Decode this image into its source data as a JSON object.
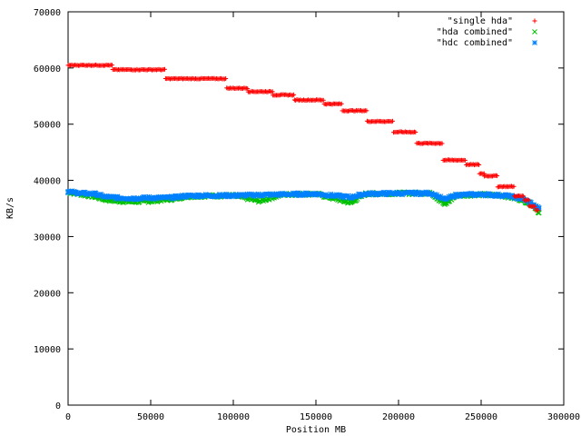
{
  "chart_data": {
    "type": "scatter",
    "title": "",
    "xlabel": "Position MB",
    "ylabel": "KB/s",
    "xlim": [
      0,
      300000
    ],
    "ylim": [
      0,
      70000
    ],
    "x_ticks": [
      0,
      50000,
      100000,
      150000,
      200000,
      250000,
      300000
    ],
    "y_ticks": [
      0,
      10000,
      20000,
      30000,
      40000,
      50000,
      60000,
      70000
    ],
    "x_tick_labels": [
      "0",
      "50000",
      "100000",
      "150000",
      "200000",
      "250000",
      "300000"
    ],
    "y_tick_labels": [
      "0",
      "10000",
      "20000",
      "30000",
      "40000",
      "50000",
      "60000",
      "70000"
    ],
    "grid": false,
    "legend_position": "top-right",
    "series": [
      {
        "name": "\"single hda\"",
        "marker": "plus",
        "color": "#ff0000",
        "steps": [
          [
            0,
            27000,
            60500
          ],
          [
            27000,
            59000,
            59700
          ],
          [
            59000,
            96000,
            58100
          ],
          [
            96000,
            109000,
            56400
          ],
          [
            109000,
            124000,
            55800
          ],
          [
            124000,
            137000,
            55200
          ],
          [
            137000,
            155000,
            54300
          ],
          [
            155000,
            166000,
            53600
          ],
          [
            166000,
            181000,
            52400
          ],
          [
            181000,
            197000,
            50500
          ],
          [
            197000,
            211000,
            48600
          ],
          [
            211000,
            227000,
            46600
          ],
          [
            227000,
            241000,
            43600
          ],
          [
            241000,
            249000,
            42800
          ],
          [
            249000,
            252000,
            41200
          ],
          [
            252000,
            260000,
            40800
          ],
          [
            260000,
            270000,
            38900
          ],
          [
            270000,
            276000,
            37200
          ],
          [
            276000,
            279000,
            36500
          ],
          [
            279000,
            283000,
            35400
          ],
          [
            283000,
            285000,
            34700
          ]
        ]
      },
      {
        "name": "\"hda combined\"",
        "marker": "cross",
        "color": "#00c000",
        "points": [
          [
            0,
            37900
          ],
          [
            8000,
            37500
          ],
          [
            16000,
            37100
          ],
          [
            22000,
            36600
          ],
          [
            30000,
            36300
          ],
          [
            40000,
            36200
          ],
          [
            50000,
            36300
          ],
          [
            60000,
            36600
          ],
          [
            65000,
            36700
          ],
          [
            70000,
            37100
          ],
          [
            80000,
            37200
          ],
          [
            100000,
            37300
          ],
          [
            116000,
            36300
          ],
          [
            130000,
            37500
          ],
          [
            150000,
            37600
          ],
          [
            171000,
            36000
          ],
          [
            180000,
            37600
          ],
          [
            200000,
            37700
          ],
          [
            220000,
            37700
          ],
          [
            228000,
            35700
          ],
          [
            235000,
            37300
          ],
          [
            250000,
            37500
          ],
          [
            265000,
            37200
          ],
          [
            275000,
            36500
          ],
          [
            280000,
            35800
          ],
          [
            283000,
            35100
          ],
          [
            285000,
            34200
          ]
        ]
      },
      {
        "name": "\"hdc combined\"",
        "marker": "star",
        "color": "#0080ff",
        "points": [
          [
            0,
            38000
          ],
          [
            8000,
            37700
          ],
          [
            16000,
            37600
          ],
          [
            22000,
            37100
          ],
          [
            30000,
            36900
          ],
          [
            40000,
            36800
          ],
          [
            50000,
            36900
          ],
          [
            60000,
            36900
          ],
          [
            65000,
            37000
          ],
          [
            70000,
            37200
          ],
          [
            80000,
            37300
          ],
          [
            100000,
            37300
          ],
          [
            130000,
            37500
          ],
          [
            150000,
            37600
          ],
          [
            171000,
            37000
          ],
          [
            180000,
            37600
          ],
          [
            200000,
            37700
          ],
          [
            220000,
            37700
          ],
          [
            228000,
            36600
          ],
          [
            235000,
            37400
          ],
          [
            250000,
            37500
          ],
          [
            265000,
            37300
          ],
          [
            275000,
            36700
          ],
          [
            280000,
            36000
          ],
          [
            283000,
            35300
          ],
          [
            285000,
            35000
          ]
        ]
      }
    ]
  }
}
